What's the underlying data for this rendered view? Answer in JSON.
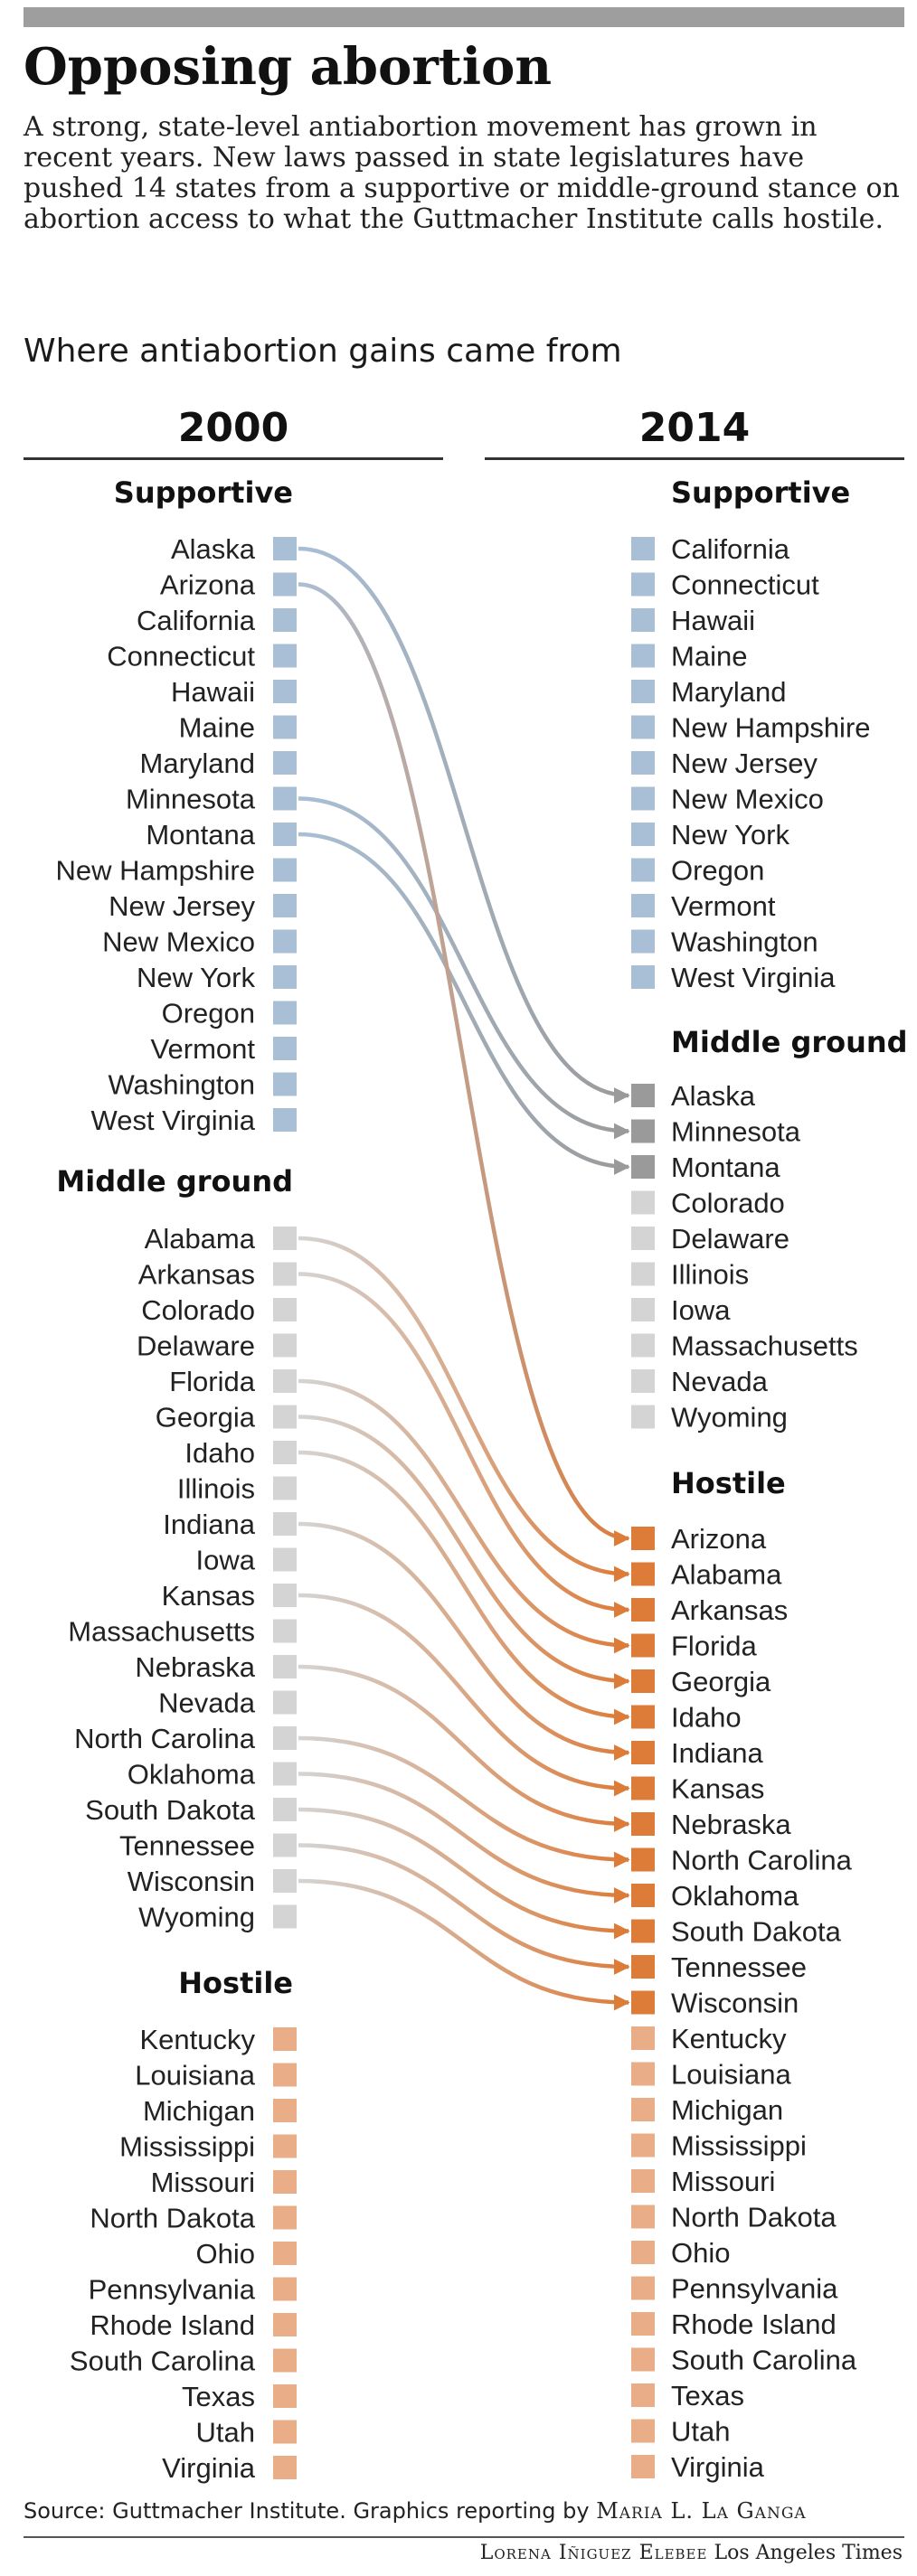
{
  "title": "Opposing abortion",
  "intro": "A strong, state-level antiabortion movement has grown in recent years. New laws passed in state legislatures have pushed 14 states from a supportive or middle-ground stance on abortion access to what the Guttmacher Institute calls hostile.",
  "subtitle": "Where antiabortion gains came from",
  "years": {
    "left": "2000",
    "right": "2014"
  },
  "colors": {
    "supportive": "#a9bfd6",
    "middle": "#d4d4d4",
    "middle_changed": "#9a9a9a",
    "hostile": "#e9ad88",
    "hostile_changed": "#dd7b39"
  },
  "groups_2000": [
    {
      "label": "Supportive",
      "category": "supportive",
      "states": [
        "Alaska",
        "Arizona",
        "California",
        "Connecticut",
        "Hawaii",
        "Maine",
        "Maryland",
        "Minnesota",
        "Montana",
        "New Hampshire",
        "New Jersey",
        "New Mexico",
        "New York",
        "Oregon",
        "Vermont",
        "Washington",
        "West Virginia"
      ]
    },
    {
      "label": "Middle ground",
      "category": "middle",
      "states": [
        "Alabama",
        "Arkansas",
        "Colorado",
        "Delaware",
        "Florida",
        "Georgia",
        "Idaho",
        "Illinois",
        "Indiana",
        "Iowa",
        "Kansas",
        "Massachusetts",
        "Nebraska",
        "Nevada",
        "North Carolina",
        "Oklahoma",
        "South Dakota",
        "Tennessee",
        "Wisconsin",
        "Wyoming"
      ]
    },
    {
      "label": "Hostile",
      "category": "hostile",
      "states": [
        "Kentucky",
        "Louisiana",
        "Michigan",
        "Mississippi",
        "Missouri",
        "North Dakota",
        "Ohio",
        "Pennsylvania",
        "Rhode Island",
        "South Carolina",
        "Texas",
        "Utah",
        "Virginia"
      ]
    }
  ],
  "groups_2014": [
    {
      "label": "Supportive",
      "category": "supportive",
      "states": [
        "California",
        "Connecticut",
        "Hawaii",
        "Maine",
        "Maryland",
        "New Hampshire",
        "New Jersey",
        "New Mexico",
        "New York",
        "Oregon",
        "Vermont",
        "Washington",
        "West Virginia"
      ]
    },
    {
      "label": "Middle ground",
      "category": "middle",
      "states": [
        "Alaska",
        "Minnesota",
        "Montana",
        "Colorado",
        "Delaware",
        "Illinois",
        "Iowa",
        "Massachusetts",
        "Nevada",
        "Wyoming"
      ],
      "changed": [
        "Alaska",
        "Minnesota",
        "Montana"
      ]
    },
    {
      "label": "Hostile",
      "category": "hostile",
      "states": [
        "Arizona",
        "Alabama",
        "Arkansas",
        "Florida",
        "Georgia",
        "Idaho",
        "Indiana",
        "Kansas",
        "Nebraska",
        "North Carolina",
        "Oklahoma",
        "South Dakota",
        "Tennessee",
        "Wisconsin",
        "Kentucky",
        "Louisiana",
        "Michigan",
        "Mississippi",
        "Missouri",
        "North Dakota",
        "Ohio",
        "Pennsylvania",
        "Rhode Island",
        "South Carolina",
        "Texas",
        "Utah",
        "Virginia"
      ],
      "changed": [
        "Arizona",
        "Alabama",
        "Arkansas",
        "Florida",
        "Georgia",
        "Idaho",
        "Indiana",
        "Kansas",
        "Nebraska",
        "North Carolina",
        "Oklahoma",
        "South Dakota",
        "Tennessee",
        "Wisconsin"
      ]
    }
  ],
  "source": {
    "text": "Source: Guttmacher Institute. Graphics reporting by",
    "reporter": "Maria L. La Ganga"
  },
  "credit": {
    "artist": "Lorena Iñiguez Elebee",
    "outlet": "Los Angeles Times"
  }
}
